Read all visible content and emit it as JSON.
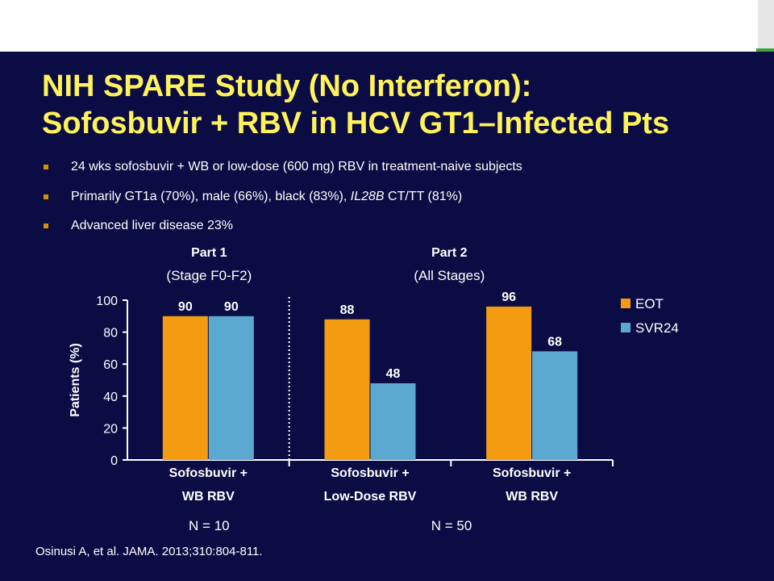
{
  "slide": {
    "title_line1": "NIH SPARE Study (No Interferon):",
    "title_line2": "Sofosbuvir + RBV in HCV GT1–Infected Pts",
    "bullets": [
      {
        "pre": "24 wks sofosbuvir + WB or low-dose (600 mg) RBV in treatment-naive subjects",
        "em": "",
        "post": ""
      },
      {
        "pre": "Primarily GT1a (70%), male (66%), black (83%), ",
        "em": "IL28B",
        "post": " CT/TT (81%)"
      },
      {
        "pre": "Advanced liver disease 23%",
        "em": "",
        "post": ""
      }
    ],
    "footnote": "Osinusi A, et al. JAMA. 2013;310:804-811."
  },
  "colors": {
    "background": "#0c0c44",
    "title": "#fff35a",
    "eot": "#f39c12",
    "svr24": "#5ba8d0",
    "bullet": "#d49000"
  },
  "chart_data": {
    "type": "bar",
    "ylabel": "Patients (%)",
    "ylim": [
      0,
      100
    ],
    "yticks": [
      0,
      20,
      40,
      60,
      80,
      100
    ],
    "categories": [
      {
        "line1": "Sofosbuvir +",
        "line2": "WB RBV"
      },
      {
        "line1": "Sofosbuvir +",
        "line2": "Low-Dose RBV"
      },
      {
        "line1": "Sofosbuvir +",
        "line2": "WB RBV"
      }
    ],
    "series": [
      {
        "name": "EOT",
        "values": [
          90,
          88,
          96
        ],
        "color": "#f39c12"
      },
      {
        "name": "SVR24",
        "values": [
          90,
          48,
          68
        ],
        "color": "#5ba8d0"
      }
    ],
    "parts": [
      {
        "title": "Part 1",
        "subtitle": "(Stage F0-F2)",
        "n_label": "N = 10"
      },
      {
        "title": "Part 2",
        "subtitle": "(All Stages)",
        "n_label": "N = 50"
      }
    ],
    "legend_position": "right",
    "grid": false
  }
}
